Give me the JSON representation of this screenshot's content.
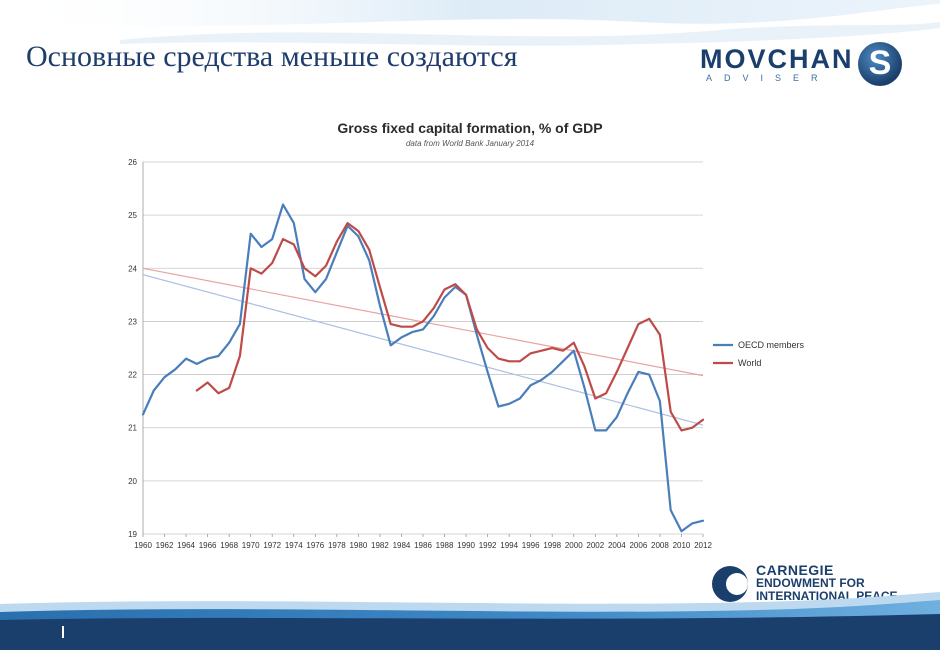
{
  "slide": {
    "title": "Основные средства меньше создаются"
  },
  "logo": {
    "word": "MOVCHAN",
    "sub": "ADVISER",
    "badge_letter": "S"
  },
  "carnegie": {
    "line1": "CARNEGIE",
    "line2": "ENDOWMENT FOR",
    "line3": "INTERNATIONAL PEACE"
  },
  "colors": {
    "oecd": "#4a7ebb",
    "world": "#be4b48",
    "oecd_trend": "#a9bfe0",
    "world_trend": "#e8a3a2",
    "brand": "#1b3f6c"
  },
  "chart_data": {
    "type": "line",
    "title": "Gross fixed capital formation, % of GDP",
    "subtitle": "data from World Bank January 2014",
    "xlabel": "",
    "ylabel": "",
    "xlim": [
      1960,
      2012
    ],
    "ylim": [
      19,
      26
    ],
    "yticks": [
      "19",
      "20",
      "21",
      "22",
      "23",
      "24",
      "25",
      "26"
    ],
    "xticks": [
      "1960",
      "1962",
      "1964",
      "1966",
      "1968",
      "1970",
      "1972",
      "1974",
      "1976",
      "1978",
      "1980",
      "1982",
      "1984",
      "1986",
      "1988",
      "1990",
      "1992",
      "1994",
      "1996",
      "1998",
      "2000",
      "2002",
      "2004",
      "2006",
      "2008",
      "2010",
      "2012"
    ],
    "grid": true,
    "legend_position": "right",
    "series": [
      {
        "name": "OECD members",
        "x": [
          1960,
          1961,
          1962,
          1963,
          1964,
          1965,
          1966,
          1967,
          1968,
          1969,
          1970,
          1971,
          1972,
          1973,
          1974,
          1975,
          1976,
          1977,
          1978,
          1979,
          1980,
          1981,
          1982,
          1983,
          1984,
          1985,
          1986,
          1987,
          1988,
          1989,
          1990,
          1991,
          1992,
          1993,
          1994,
          1995,
          1996,
          1997,
          1998,
          1999,
          2000,
          2001,
          2002,
          2003,
          2004,
          2005,
          2006,
          2007,
          2008,
          2009,
          2010,
          2011,
          2012
        ],
        "values": [
          21.25,
          21.7,
          21.95,
          22.1,
          22.3,
          22.2,
          22.3,
          22.35,
          22.6,
          22.95,
          24.65,
          24.4,
          24.55,
          25.2,
          24.85,
          23.8,
          23.55,
          23.8,
          24.3,
          24.8,
          24.6,
          24.15,
          23.3,
          22.55,
          22.7,
          22.8,
          22.85,
          23.1,
          23.45,
          23.65,
          23.5,
          22.75,
          22.05,
          21.4,
          21.45,
          21.55,
          21.8,
          21.9,
          22.05,
          22.25,
          22.45,
          21.75,
          20.95,
          20.95,
          21.2,
          21.65,
          22.05,
          22.0,
          21.5,
          19.45,
          19.05,
          19.2,
          19.25
        ]
      },
      {
        "name": "World",
        "x": [
          1965,
          1966,
          1967,
          1968,
          1969,
          1970,
          1971,
          1972,
          1973,
          1974,
          1975,
          1976,
          1977,
          1978,
          1979,
          1980,
          1981,
          1982,
          1983,
          1984,
          1985,
          1986,
          1987,
          1988,
          1989,
          1990,
          1991,
          1992,
          1993,
          1994,
          1995,
          1996,
          1997,
          1998,
          1999,
          2000,
          2001,
          2002,
          2003,
          2004,
          2005,
          2006,
          2007,
          2008,
          2009,
          2010,
          2011,
          2012
        ],
        "values": [
          21.7,
          21.85,
          21.65,
          21.75,
          22.35,
          24.0,
          23.9,
          24.1,
          24.55,
          24.45,
          24.0,
          23.85,
          24.05,
          24.5,
          24.85,
          24.7,
          24.35,
          23.65,
          22.95,
          22.9,
          22.9,
          23.0,
          23.25,
          23.6,
          23.7,
          23.5,
          22.85,
          22.5,
          22.3,
          22.25,
          22.25,
          22.4,
          22.45,
          22.5,
          22.45,
          22.6,
          22.15,
          21.55,
          21.65,
          22.05,
          22.5,
          22.95,
          23.05,
          22.75,
          21.3,
          20.95,
          21.0,
          21.15
        ]
      }
    ],
    "trendlines": [
      {
        "series": "OECD members",
        "x": [
          1960,
          2012
        ],
        "values": [
          23.88,
          21.05
        ]
      },
      {
        "series": "World",
        "x": [
          1960,
          2012
        ],
        "values": [
          24.0,
          21.98
        ]
      }
    ]
  }
}
